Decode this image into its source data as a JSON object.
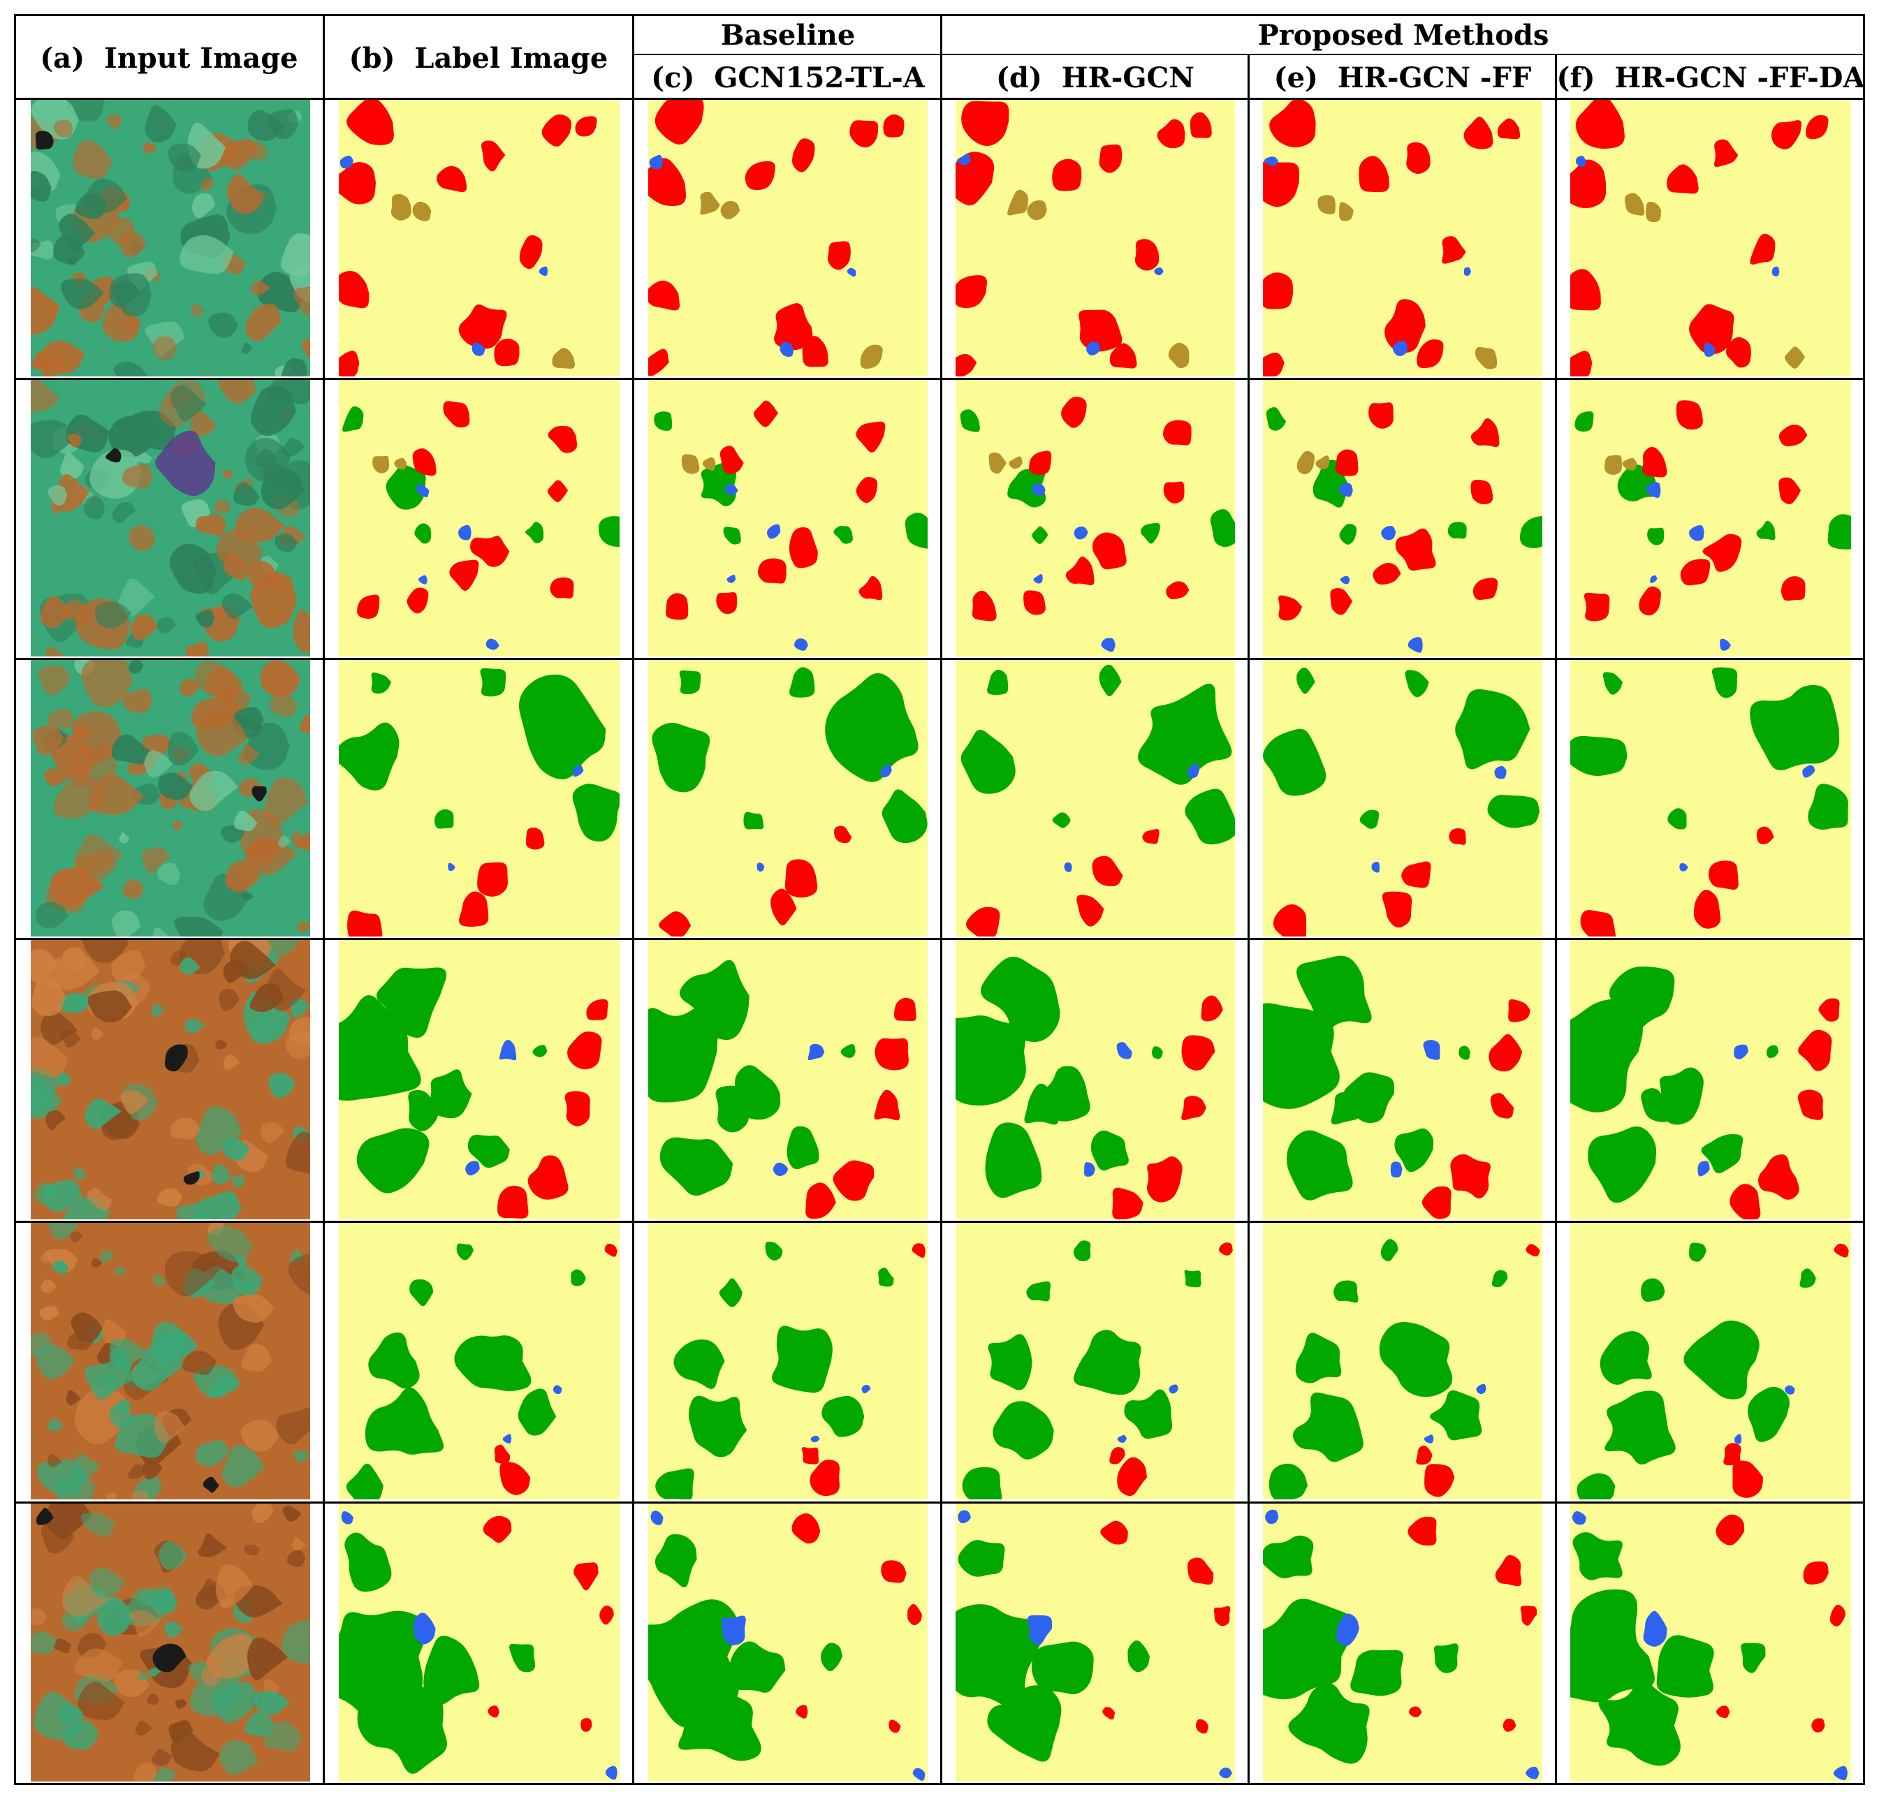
{
  "header": {
    "group_baseline": "Baseline",
    "group_proposed": "Proposed Methods",
    "columns": [
      {
        "letter": "(a)",
        "name": "Input Image"
      },
      {
        "letter": "(b)",
        "name": "Label Image"
      },
      {
        "letter": "(c)",
        "name": "GCN152-TL-A"
      },
      {
        "letter": "(d)",
        "name": "HR-GCN"
      },
      {
        "letter": "(e)",
        "name": "HR-GCN -FF"
      },
      {
        "letter": "(f)",
        "name": "HR-GCN -FF-DA"
      }
    ]
  },
  "colors": {
    "agriculture": "#fcfc96",
    "urban": "#ff0000",
    "forest": "#00a800",
    "water": "#2e62f0",
    "misc": "#b4912a",
    "satellite_green": "#3aa878",
    "satellite_orange": "#b86a2e",
    "satellite_dark": "#1a1a1a",
    "satellite_purple": "#5a3c8c"
  }
}
